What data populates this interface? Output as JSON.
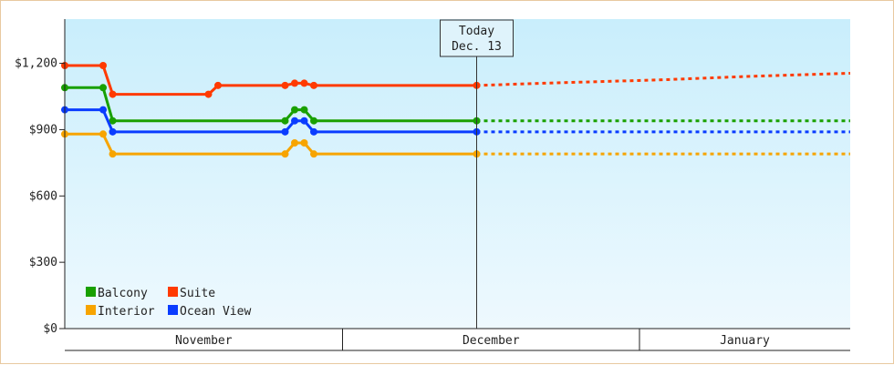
{
  "chart_data": {
    "type": "line",
    "y_tick_labels": [
      "$0",
      "$300",
      "$600",
      "$900",
      "$1,200"
    ],
    "y_ticks": [
      0,
      300,
      600,
      900,
      1200
    ],
    "ylim": [
      0,
      1400
    ],
    "x_domain": [
      "2013-10-31",
      "2014-01-21"
    ],
    "months": [
      {
        "label": "November",
        "start": "2013-10-31",
        "end": "2013-11-29"
      },
      {
        "label": "December",
        "start": "2013-11-29",
        "end": "2013-12-30"
      },
      {
        "label": "January",
        "start": "2013-12-30",
        "end": "2014-01-21"
      }
    ],
    "today": {
      "line1": "Today",
      "line2": "Dec. 13",
      "date": "2013-12-13"
    },
    "legend_position": "bottom-left",
    "background": "gradient light blue",
    "series": [
      {
        "name": "Suite",
        "color": "#ff3a00",
        "points": [
          [
            "2013-10-31",
            1190
          ],
          [
            "2013-11-04",
            1190
          ],
          [
            "2013-11-05",
            1060
          ],
          [
            "2013-11-15",
            1060
          ],
          [
            "2013-11-16",
            1100
          ],
          [
            "2013-11-23",
            1100
          ],
          [
            "2013-11-24",
            1110
          ],
          [
            "2013-11-25",
            1110
          ],
          [
            "2013-11-26",
            1100
          ],
          [
            "2013-12-13",
            1100
          ]
        ],
        "forecast": [
          [
            "2013-12-13",
            1100
          ],
          [
            "2013-12-20",
            1110
          ],
          [
            "2014-01-01",
            1125
          ],
          [
            "2014-01-10",
            1140
          ],
          [
            "2014-01-21",
            1155
          ]
        ]
      },
      {
        "name": "Balcony",
        "color": "#19a000",
        "points": [
          [
            "2013-10-31",
            1090
          ],
          [
            "2013-11-04",
            1090
          ],
          [
            "2013-11-05",
            940
          ],
          [
            "2013-11-23",
            940
          ],
          [
            "2013-11-24",
            990
          ],
          [
            "2013-11-25",
            990
          ],
          [
            "2013-11-26",
            940
          ],
          [
            "2013-12-13",
            940
          ]
        ],
        "forecast": [
          [
            "2013-12-13",
            940
          ],
          [
            "2014-01-21",
            940
          ]
        ]
      },
      {
        "name": "Ocean View",
        "color": "#0a3cff",
        "points": [
          [
            "2013-10-31",
            990
          ],
          [
            "2013-11-04",
            990
          ],
          [
            "2013-11-05",
            890
          ],
          [
            "2013-11-23",
            890
          ],
          [
            "2013-11-24",
            940
          ],
          [
            "2013-11-25",
            940
          ],
          [
            "2013-11-26",
            890
          ],
          [
            "2013-12-13",
            890
          ]
        ],
        "forecast": [
          [
            "2013-12-13",
            890
          ],
          [
            "2014-01-21",
            890
          ]
        ]
      },
      {
        "name": "Interior",
        "color": "#f7a400",
        "points": [
          [
            "2013-10-31",
            880
          ],
          [
            "2013-11-04",
            880
          ],
          [
            "2013-11-05",
            790
          ],
          [
            "2013-11-23",
            790
          ],
          [
            "2013-11-24",
            840
          ],
          [
            "2013-11-25",
            840
          ],
          [
            "2013-11-26",
            790
          ],
          [
            "2013-12-13",
            790
          ]
        ],
        "forecast": [
          [
            "2013-12-13",
            790
          ],
          [
            "2014-01-21",
            790
          ]
        ]
      }
    ],
    "legend": [
      {
        "name": "Balcony",
        "color": "#19a000"
      },
      {
        "name": "Suite",
        "color": "#ff3a00"
      },
      {
        "name": "Interior",
        "color": "#f7a400"
      },
      {
        "name": "Ocean View",
        "color": "#0a3cff"
      }
    ]
  }
}
